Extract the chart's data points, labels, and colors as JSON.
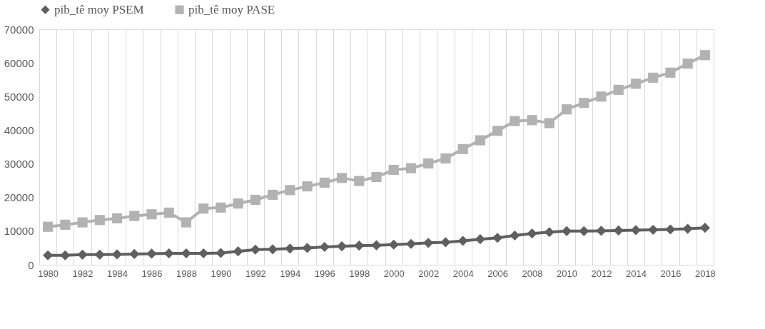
{
  "chart_data": {
    "type": "line",
    "categories": [
      "1980",
      null,
      "1982",
      null,
      "1984",
      null,
      "1986",
      null,
      "1988",
      null,
      "1990",
      null,
      "1992",
      null,
      "1994",
      null,
      "1996",
      null,
      "1998",
      null,
      "2000",
      null,
      "2002",
      null,
      "2004",
      null,
      "2006",
      null,
      "2008",
      null,
      "2010",
      null,
      "2012",
      null,
      "2014",
      null,
      "2016",
      null,
      "2018"
    ],
    "series": [
      {
        "name": "pib_tê moy PSEM",
        "color": "#5f5f5f",
        "marker": "diamond",
        "values": [
          2800,
          2800,
          3000,
          3000,
          3100,
          3200,
          3300,
          3400,
          3400,
          3400,
          3500,
          4000,
          4500,
          4600,
          4800,
          5000,
          5300,
          5500,
          5700,
          5800,
          6000,
          6200,
          6500,
          6700,
          7100,
          7600,
          8000,
          8700,
          9300,
          9700,
          10000,
          10000,
          10100,
          10200,
          10300,
          10400,
          10500,
          10700,
          11000
        ]
      },
      {
        "name": "pib_tê moy PASE",
        "color": "#b2b2b2",
        "marker": "square",
        "values": [
          11300,
          11900,
          12600,
          13300,
          13800,
          14500,
          15000,
          15500,
          12600,
          16700,
          17000,
          18200,
          19300,
          20800,
          22200,
          23300,
          24400,
          25800,
          24900,
          26100,
          28200,
          28700,
          30100,
          31600,
          34400,
          37000,
          39800,
          42700,
          43000,
          42100,
          46200,
          48100,
          50000,
          52000,
          53800,
          55600,
          57100,
          59800,
          62300
        ]
      }
    ],
    "ylim": [
      0,
      70000
    ],
    "yticks": [
      0,
      10000,
      20000,
      30000,
      40000,
      50000,
      60000,
      70000
    ],
    "grid": "x",
    "legend": "top",
    "line_style": "solid"
  }
}
